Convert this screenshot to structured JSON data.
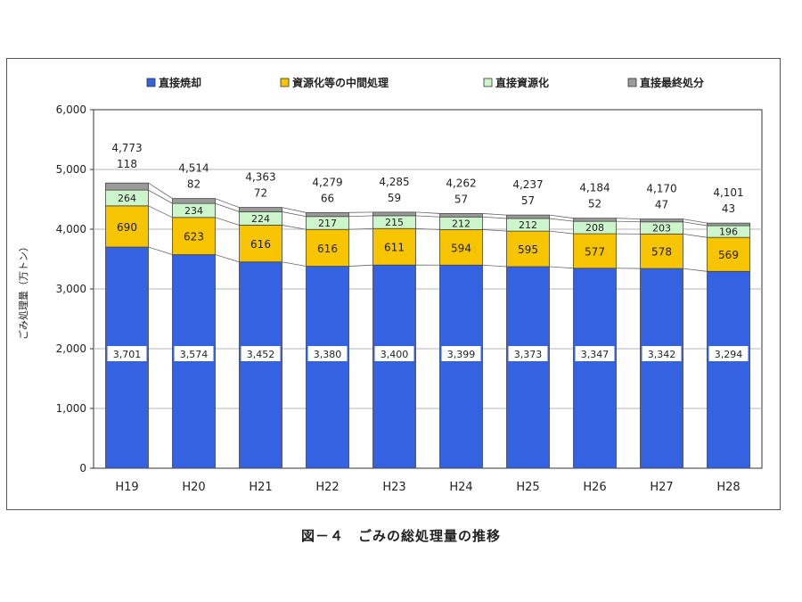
{
  "chart_data": {
    "type": "bar",
    "stacked": true,
    "categories": [
      "H19",
      "H20",
      "H21",
      "H22",
      "H23",
      "H24",
      "H25",
      "H26",
      "H27",
      "H28"
    ],
    "series": [
      {
        "name": "直接焼却",
        "color": "#3462e0",
        "values": [
          3701,
          3574,
          3452,
          3380,
          3400,
          3399,
          3373,
          3347,
          3342,
          3294
        ]
      },
      {
        "name": "資源化等の中間処理",
        "color": "#f7c400",
        "values": [
          690,
          623,
          616,
          616,
          611,
          594,
          595,
          577,
          578,
          569
        ]
      },
      {
        "name": "直接資源化",
        "color": "#ccf5cc",
        "values": [
          264,
          234,
          224,
          217,
          215,
          212,
          212,
          208,
          203,
          196
        ]
      },
      {
        "name": "直接最終処分",
        "color": "#9a9a9a",
        "values": [
          118,
          82,
          72,
          66,
          59,
          57,
          57,
          52,
          47,
          43
        ]
      }
    ],
    "totals": [
      "4,773",
      "4,514",
      "4,363",
      "4,279",
      "4,285",
      "4,262",
      "4,237",
      "4,184",
      "4,170",
      "4,101"
    ],
    "value_labels": {
      "直接焼却": [
        "3,701",
        "3,574",
        "3,452",
        "3,380",
        "3,400",
        "3,399",
        "3,373",
        "3,347",
        "3,342",
        "3,294"
      ],
      "資源化等の中間処理": [
        "690",
        "623",
        "616",
        "616",
        "611",
        "594",
        "595",
        "577",
        "578",
        "569"
      ],
      "直接資源化": [
        "264",
        "234",
        "224",
        "217",
        "215",
        "212",
        "212",
        "208",
        "203",
        "196"
      ],
      "直接最終処分": [
        "118",
        "82",
        "72",
        "66",
        "59",
        "57",
        "57",
        "52",
        "47",
        "43"
      ]
    },
    "ylabel": "ごみ処理量（万トン）",
    "xlabel": "",
    "ylim": [
      0,
      6000
    ],
    "yticks": [
      0,
      1000,
      2000,
      3000,
      4000,
      5000,
      6000
    ],
    "ytick_labels": [
      "0",
      "1,000",
      "2,000",
      "3,000",
      "4,000",
      "5,000",
      "6,000"
    ],
    "grid": true,
    "legend_position": "top"
  },
  "caption": "図－４　ごみの総処理量の推移"
}
